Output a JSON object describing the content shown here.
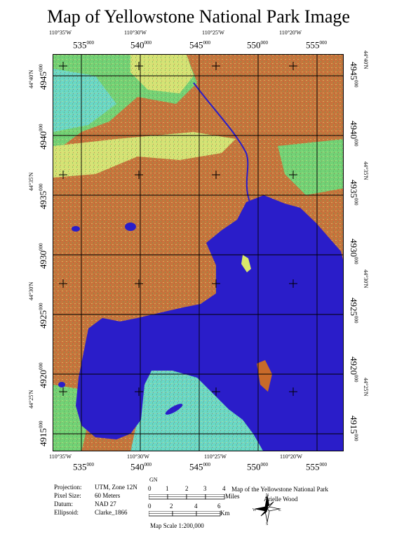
{
  "title": "Map of Yellowstone National Park Image",
  "colors": {
    "lake": "#2a1dc9",
    "land_green": "#69d56c",
    "land_orange": "#c86a2a",
    "land_cyan": "#5fdbc8",
    "land_yellow": "#d9e86b",
    "grid": "#000000"
  },
  "graticule": {
    "top_labels": [
      "110°35'W",
      "110°30'W",
      "110°25'W",
      "110°20'W"
    ],
    "bottom_labels": [
      "110°35'W",
      "110°30'W",
      "110°25'W",
      "110°20'W"
    ],
    "left_labels": [
      "44°40'N",
      "44°35'N",
      "44°30'N",
      "44°25'N"
    ],
    "right_labels": [
      "44°40'N",
      "44°35'N",
      "44°30'N",
      "44°25'N"
    ]
  },
  "utm_grid": {
    "easting": [
      {
        "main": "5",
        "sub": "35",
        "sup": "000"
      },
      {
        "main": "5",
        "sub": "40",
        "sup": "000"
      },
      {
        "main": "5",
        "sub": "45",
        "sup": "000"
      },
      {
        "main": "5",
        "sub": "50",
        "sup": "000"
      },
      {
        "main": "5",
        "sub": "55",
        "sup": "000"
      }
    ],
    "northing": [
      {
        "main": "49",
        "sub": "45",
        "sup": "000"
      },
      {
        "main": "49",
        "sub": "40",
        "sup": "000"
      },
      {
        "main": "49",
        "sub": "35",
        "sup": "000"
      },
      {
        "main": "49",
        "sub": "30",
        "sup": "000"
      },
      {
        "main": "49",
        "sub": "25",
        "sup": "000"
      },
      {
        "main": "49",
        "sub": "20",
        "sup": "000"
      },
      {
        "main": "49",
        "sub": "15",
        "sup": "000"
      }
    ]
  },
  "info": {
    "projection_label": "Projection:",
    "projection": "UTM, Zone 12N",
    "pixel_label": "Pixel Size:",
    "pixel": "60 Meters",
    "datum_label": "Datum:",
    "datum": "NAD 27",
    "ellipsoid_label": "Ellipsoid:",
    "ellipsoid": "Clarke_1866"
  },
  "scalebar": {
    "gn": "GN",
    "miles_ticks": [
      "0",
      "1",
      "2",
      "3",
      "4"
    ],
    "miles_unit": "Miles",
    "km_ticks": [
      "0",
      "2",
      "4",
      "6"
    ],
    "km_unit": "Km",
    "map_scale": "Map Scale 1:200,000"
  },
  "credits": {
    "title": "Map of the Yellowstone National Park",
    "author": "Arielle Wood"
  },
  "compass": {
    "n": "N",
    "s": "S",
    "e": "E",
    "w": "W"
  }
}
